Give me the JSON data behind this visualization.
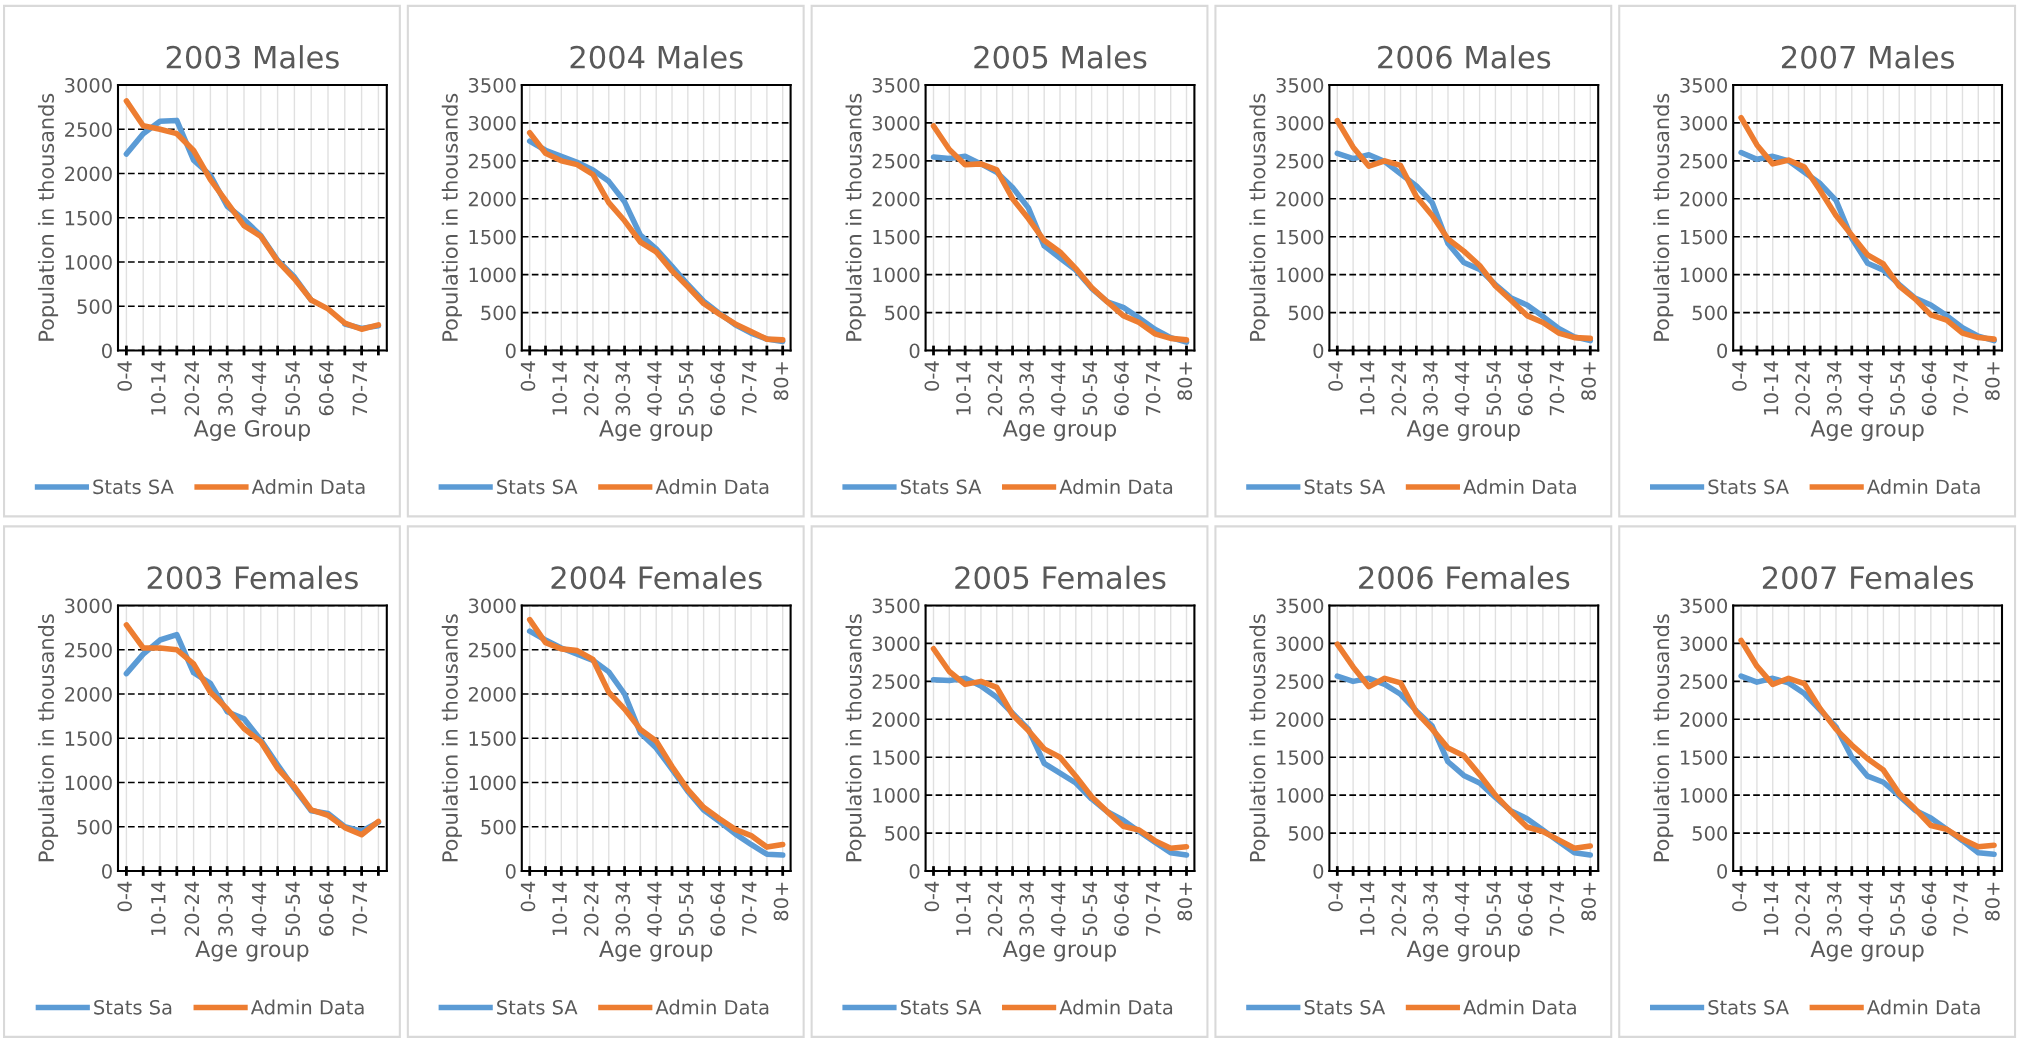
{
  "chart_data": [
    {
      "type": "line",
      "title": "2003 Males",
      "xlabel": "Age Group",
      "ylabel": "Population in thousands",
      "categories": [
        "0-4",
        null,
        "10-14",
        null,
        "20-24",
        null,
        "30-34",
        null,
        "40-44",
        null,
        "50-54",
        null,
        "60-64",
        null,
        "70-74",
        null
      ],
      "ylim": [
        0,
        3000
      ],
      "yticks": [
        0,
        500,
        1000,
        1500,
        2000,
        2500,
        3000
      ],
      "grid": true,
      "legend": "bottom",
      "series": [
        {
          "name": "Stats SA",
          "color": "#5b9bd5",
          "values": [
            2220,
            2450,
            2590,
            2600,
            2150,
            1980,
            1630,
            1480,
            1300,
            1020,
            830,
            570,
            null,
            300,
            250,
            280
          ]
        },
        {
          "name": "Admin Data",
          "color": "#ed7d31",
          "values": [
            2820,
            2540,
            2500,
            2450,
            2260,
            1930,
            1670,
            1410,
            1290,
            1010,
            810,
            570,
            470,
            310,
            240,
            290
          ]
        }
      ]
    },
    {
      "type": "line",
      "title": "2004 Males",
      "xlabel": "Age group",
      "ylabel": "Population in thousands",
      "categories": [
        "0-4",
        null,
        "10-14",
        null,
        "20-24",
        null,
        "30-34",
        null,
        "40-44",
        null,
        "50-54",
        null,
        "60-64",
        null,
        "70-74",
        null,
        "80+"
      ],
      "ylim": [
        0,
        3500
      ],
      "yticks": [
        0,
        500,
        1000,
        1500,
        2000,
        2500,
        3000,
        3500
      ],
      "grid": true,
      "legend": "bottom",
      "series": [
        {
          "name": "Stats SA",
          "color": "#5b9bd5",
          "values": [
            2760,
            2640,
            2560,
            2480,
            2380,
            2230,
            1960,
            1520,
            1340,
            1110,
            870,
            650,
            490,
            340,
            230,
            150,
            120
          ]
        },
        {
          "name": "Admin Data",
          "color": "#ed7d31",
          "values": [
            2870,
            2600,
            2500,
            2450,
            2320,
            1950,
            1710,
            1430,
            1300,
            1050,
            840,
            620,
            480,
            350,
            250,
            150,
            140
          ]
        }
      ]
    },
    {
      "type": "line",
      "title": "2005 Males",
      "xlabel": "Age group",
      "ylabel": "Population in thousands",
      "categories": [
        "0-4",
        null,
        "10-14",
        null,
        "20-24",
        null,
        "30-34",
        null,
        "40-44",
        null,
        "50-54",
        null,
        "60-64",
        null,
        "70-74",
        null,
        "80+"
      ],
      "ylim": [
        0,
        3500
      ],
      "yticks": [
        0,
        500,
        1000,
        1500,
        2000,
        2500,
        3000,
        3500
      ],
      "grid": true,
      "legend": "bottom",
      "series": [
        {
          "name": "Stats SA",
          "color": "#5b9bd5",
          "values": [
            2550,
            2530,
            2560,
            2460,
            2350,
            2150,
            1880,
            1380,
            1220,
            1060,
            820,
            640,
            570,
            430,
            280,
            170,
            110
          ]
        },
        {
          "name": "Admin Data",
          "color": "#ed7d31",
          "values": [
            2960,
            2650,
            2450,
            2460,
            2380,
            2000,
            1740,
            1450,
            1300,
            1080,
            830,
            640,
            460,
            370,
            220,
            160,
            140
          ]
        }
      ]
    },
    {
      "type": "line",
      "title": "2006 Males",
      "xlabel": "Age group",
      "ylabel": "Population in thousands",
      "categories": [
        "0-4",
        null,
        "10-14",
        null,
        "20-24",
        null,
        "30-34",
        null,
        "40-44",
        null,
        "50-54",
        null,
        "60-64",
        null,
        "70-74",
        null,
        "80+"
      ],
      "ylim": [
        0,
        3500
      ],
      "yticks": [
        0,
        500,
        1000,
        1500,
        2000,
        2500,
        3000,
        3500
      ],
      "grid": true,
      "legend": "bottom",
      "series": [
        {
          "name": "Stats SA",
          "color": "#5b9bd5",
          "values": [
            2600,
            2530,
            2580,
            2490,
            2330,
            2170,
            1950,
            1410,
            1160,
            1070,
            870,
            690,
            600,
            450,
            290,
            180,
            130
          ]
        },
        {
          "name": "Admin Data",
          "color": "#ed7d31",
          "values": [
            3030,
            2680,
            2430,
            2500,
            2440,
            2030,
            1780,
            1470,
            1310,
            1120,
            850,
            660,
            460,
            370,
            230,
            170,
            160
          ]
        }
      ]
    },
    {
      "type": "line",
      "title": "2007 Males",
      "xlabel": "Age group",
      "ylabel": "Population in thousands",
      "categories": [
        "0-4",
        null,
        "10-14",
        null,
        "20-24",
        null,
        "30-34",
        null,
        "40-44",
        null,
        "50-54",
        null,
        "60-64",
        null,
        "70-74",
        null,
        "80+"
      ],
      "ylim": [
        0,
        3500
      ],
      "yticks": [
        0,
        500,
        1000,
        1500,
        2000,
        2500,
        3000,
        3500
      ],
      "grid": true,
      "legend": "bottom",
      "series": [
        {
          "name": "Stats SA",
          "color": "#5b9bd5",
          "values": [
            2610,
            2520,
            2560,
            2500,
            2350,
            2200,
            1980,
            1480,
            1150,
            1060,
            870,
            690,
            600,
            460,
            300,
            190,
            130
          ]
        },
        {
          "name": "Admin Data",
          "color": "#ed7d31",
          "values": [
            3070,
            2710,
            2460,
            2510,
            2420,
            2110,
            1780,
            1520,
            1260,
            1140,
            850,
            680,
            470,
            400,
            230,
            170,
            150
          ]
        }
      ]
    },
    {
      "type": "line",
      "title": "2003 Females",
      "xlabel": "Age group",
      "ylabel": "Population in thousands",
      "categories": [
        "0-4",
        null,
        "10-14",
        null,
        "20-24",
        null,
        "30-34",
        null,
        "40-44",
        null,
        "50-54",
        null,
        "60-64",
        null,
        "70-74",
        null
      ],
      "ylim": [
        0,
        3000
      ],
      "yticks": [
        0,
        500,
        1000,
        1500,
        2000,
        2500,
        3000
      ],
      "grid": true,
      "legend": "bottom",
      "series": [
        {
          "name": "Stats Sa",
          "color": "#5b9bd5",
          "values": [
            2230,
            2450,
            2610,
            2670,
            2240,
            2120,
            1800,
            1720,
            1480,
            1200,
            930,
            680,
            650,
            500,
            450,
            550
          ]
        },
        {
          "name": "Admin Data",
          "color": "#ed7d31",
          "values": [
            2780,
            2520,
            2520,
            2500,
            2340,
            2020,
            1830,
            1610,
            1460,
            1160,
            950,
            690,
            630,
            490,
            410,
            560
          ]
        }
      ]
    },
    {
      "type": "line",
      "title": "2004 Females",
      "xlabel": "Age group",
      "ylabel": "Population in thousands",
      "categories": [
        "0-4",
        null,
        "10-14",
        null,
        "20-24",
        null,
        "30-34",
        null,
        "40-44",
        null,
        "50-54",
        null,
        "60-64",
        null,
        "70-74",
        null,
        "80+"
      ],
      "ylim": [
        0,
        3000
      ],
      "yticks": [
        0,
        500,
        1000,
        1500,
        2000,
        2500,
        3000
      ],
      "grid": true,
      "legend": "bottom",
      "series": [
        {
          "name": "Stats SA",
          "color": "#5b9bd5",
          "values": [
            2710,
            2610,
            2520,
            2450,
            2380,
            2250,
            2000,
            1560,
            1390,
            1150,
            900,
            690,
            560,
            420,
            300,
            190,
            180
          ]
        },
        {
          "name": "Admin Data",
          "color": "#ed7d31",
          "values": [
            2840,
            2580,
            2510,
            2490,
            2390,
            2020,
            1830,
            1600,
            1470,
            1180,
            920,
            720,
            590,
            470,
            400,
            270,
            300
          ]
        }
      ]
    },
    {
      "type": "line",
      "title": "2005 Females",
      "xlabel": "Age group",
      "ylabel": "Population in thousands",
      "categories": [
        "0-4",
        null,
        "10-14",
        null,
        "20-24",
        null,
        "30-34",
        null,
        "40-44",
        null,
        "50-54",
        null,
        "60-64",
        null,
        "70-74",
        null,
        "80+"
      ],
      "ylim": [
        0,
        3500
      ],
      "yticks": [
        0,
        500,
        1000,
        1500,
        2000,
        2500,
        3000,
        3500
      ],
      "grid": true,
      "legend": "bottom",
      "series": [
        {
          "name": "Stats SA",
          "color": "#5b9bd5",
          "values": [
            2520,
            2510,
            2540,
            2440,
            2290,
            2080,
            1870,
            1420,
            1290,
            1160,
            950,
            780,
            670,
            520,
            380,
            240,
            210
          ]
        },
        {
          "name": "Admin Data",
          "color": "#ed7d31",
          "values": [
            2930,
            2630,
            2460,
            2500,
            2420,
            2060,
            1850,
            1610,
            1500,
            1250,
            980,
            780,
            590,
            540,
            400,
            300,
            320
          ]
        }
      ]
    },
    {
      "type": "line",
      "title": "2006 Females",
      "xlabel": "Age group",
      "ylabel": "Population in thousands",
      "categories": [
        "0-4",
        null,
        "10-14",
        null,
        "20-24",
        null,
        "30-34",
        null,
        "40-44",
        null,
        "50-54",
        null,
        "60-64",
        null,
        "70-74",
        null,
        "80+"
      ],
      "ylim": [
        0,
        3500
      ],
      "yticks": [
        0,
        500,
        1000,
        1500,
        2000,
        2500,
        3000,
        3500
      ],
      "grid": true,
      "legend": "bottom",
      "series": [
        {
          "name": "Stats SA",
          "color": "#5b9bd5",
          "values": [
            2570,
            2500,
            2540,
            2460,
            2330,
            2110,
            1910,
            1440,
            1260,
            1160,
            970,
            790,
            690,
            540,
            390,
            240,
            210
          ]
        },
        {
          "name": "Admin Data",
          "color": "#ed7d31",
          "values": [
            2990,
            2690,
            2430,
            2540,
            2480,
            2090,
            1870,
            1620,
            1520,
            1270,
            1000,
            780,
            580,
            520,
            410,
            300,
            330
          ]
        }
      ]
    },
    {
      "type": "line",
      "title": "2007 Females",
      "xlabel": "Age group",
      "ylabel": "Population in thousands",
      "categories": [
        "0-4",
        null,
        "10-14",
        null,
        "20-24",
        null,
        "30-34",
        null,
        "40-44",
        null,
        "50-54",
        null,
        "60-64",
        null,
        "70-74",
        null,
        "80+"
      ],
      "ylim": [
        0,
        3500
      ],
      "yticks": [
        0,
        500,
        1000,
        1500,
        2000,
        2500,
        3000,
        3500
      ],
      "grid": true,
      "legend": "bottom",
      "series": [
        {
          "name": "Stats SA",
          "color": "#5b9bd5",
          "values": [
            2570,
            2490,
            2540,
            2480,
            2340,
            2120,
            1900,
            1500,
            1250,
            1170,
            990,
            800,
            700,
            550,
            400,
            240,
            220
          ]
        },
        {
          "name": "Admin Data",
          "color": "#ed7d31",
          "values": [
            3040,
            2700,
            2460,
            2540,
            2470,
            2140,
            1870,
            1660,
            1480,
            1330,
            1020,
            820,
            600,
            550,
            420,
            320,
            340
          ]
        }
      ]
    }
  ]
}
